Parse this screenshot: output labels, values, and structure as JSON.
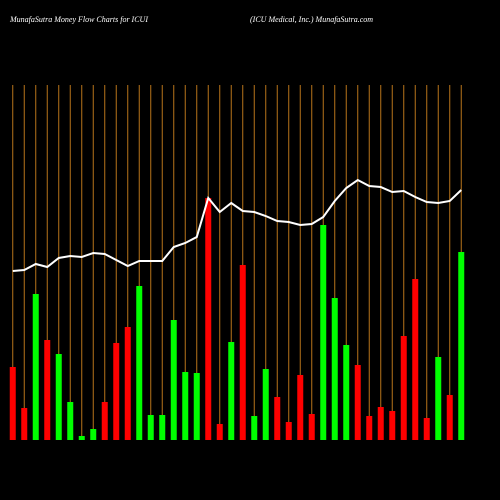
{
  "chart_data": {
    "type": "bar",
    "title": "MunafaSutra  Money Flow  Charts for ICUI",
    "subtitle": "(ICU Medical, Inc.) MunafaSutra.com",
    "values": [
      73,
      32,
      146,
      100,
      86,
      38,
      4,
      11,
      38,
      97,
      113,
      154,
      25,
      25,
      120,
      68,
      67,
      242,
      16,
      98,
      175,
      24,
      71,
      43,
      18,
      65,
      26,
      215,
      142,
      95,
      75,
      24,
      33,
      29,
      104,
      161,
      22,
      83,
      45,
      188
    ],
    "bar_colors": [
      "#ff0000",
      "#ff0000",
      "#00ff00",
      "#ff0000",
      "#00ff00",
      "#00ff00",
      "#00ff00",
      "#00ff00",
      "#ff0000",
      "#ff0000",
      "#ff0000",
      "#00ff00",
      "#00ff00",
      "#00ff00",
      "#00ff00",
      "#00ff00",
      "#00ff00",
      "#ff0000",
      "#ff0000",
      "#00ff00",
      "#ff0000",
      "#00ff00",
      "#00ff00",
      "#ff0000",
      "#ff0000",
      "#ff0000",
      "#ff0000",
      "#00ff00",
      "#00ff00",
      "#00ff00",
      "#ff0000",
      "#ff0000",
      "#ff0000",
      "#ff0000",
      "#ff0000",
      "#ff0000",
      "#ff0000",
      "#00ff00",
      "#ff0000",
      "#00ff00"
    ],
    "line_values": [
      169,
      170,
      176,
      173,
      182,
      184,
      183,
      187,
      186,
      180,
      174,
      179,
      179,
      179,
      193,
      197,
      203,
      242,
      228,
      237,
      229,
      228,
      224,
      219,
      218,
      215,
      216,
      223,
      239,
      252,
      260,
      254,
      253,
      248,
      249,
      243,
      238,
      237,
      239,
      250
    ],
    "line_color": "#ffffff",
    "grid_color": "#b8741a",
    "ylim": [
      0,
      355
    ]
  }
}
